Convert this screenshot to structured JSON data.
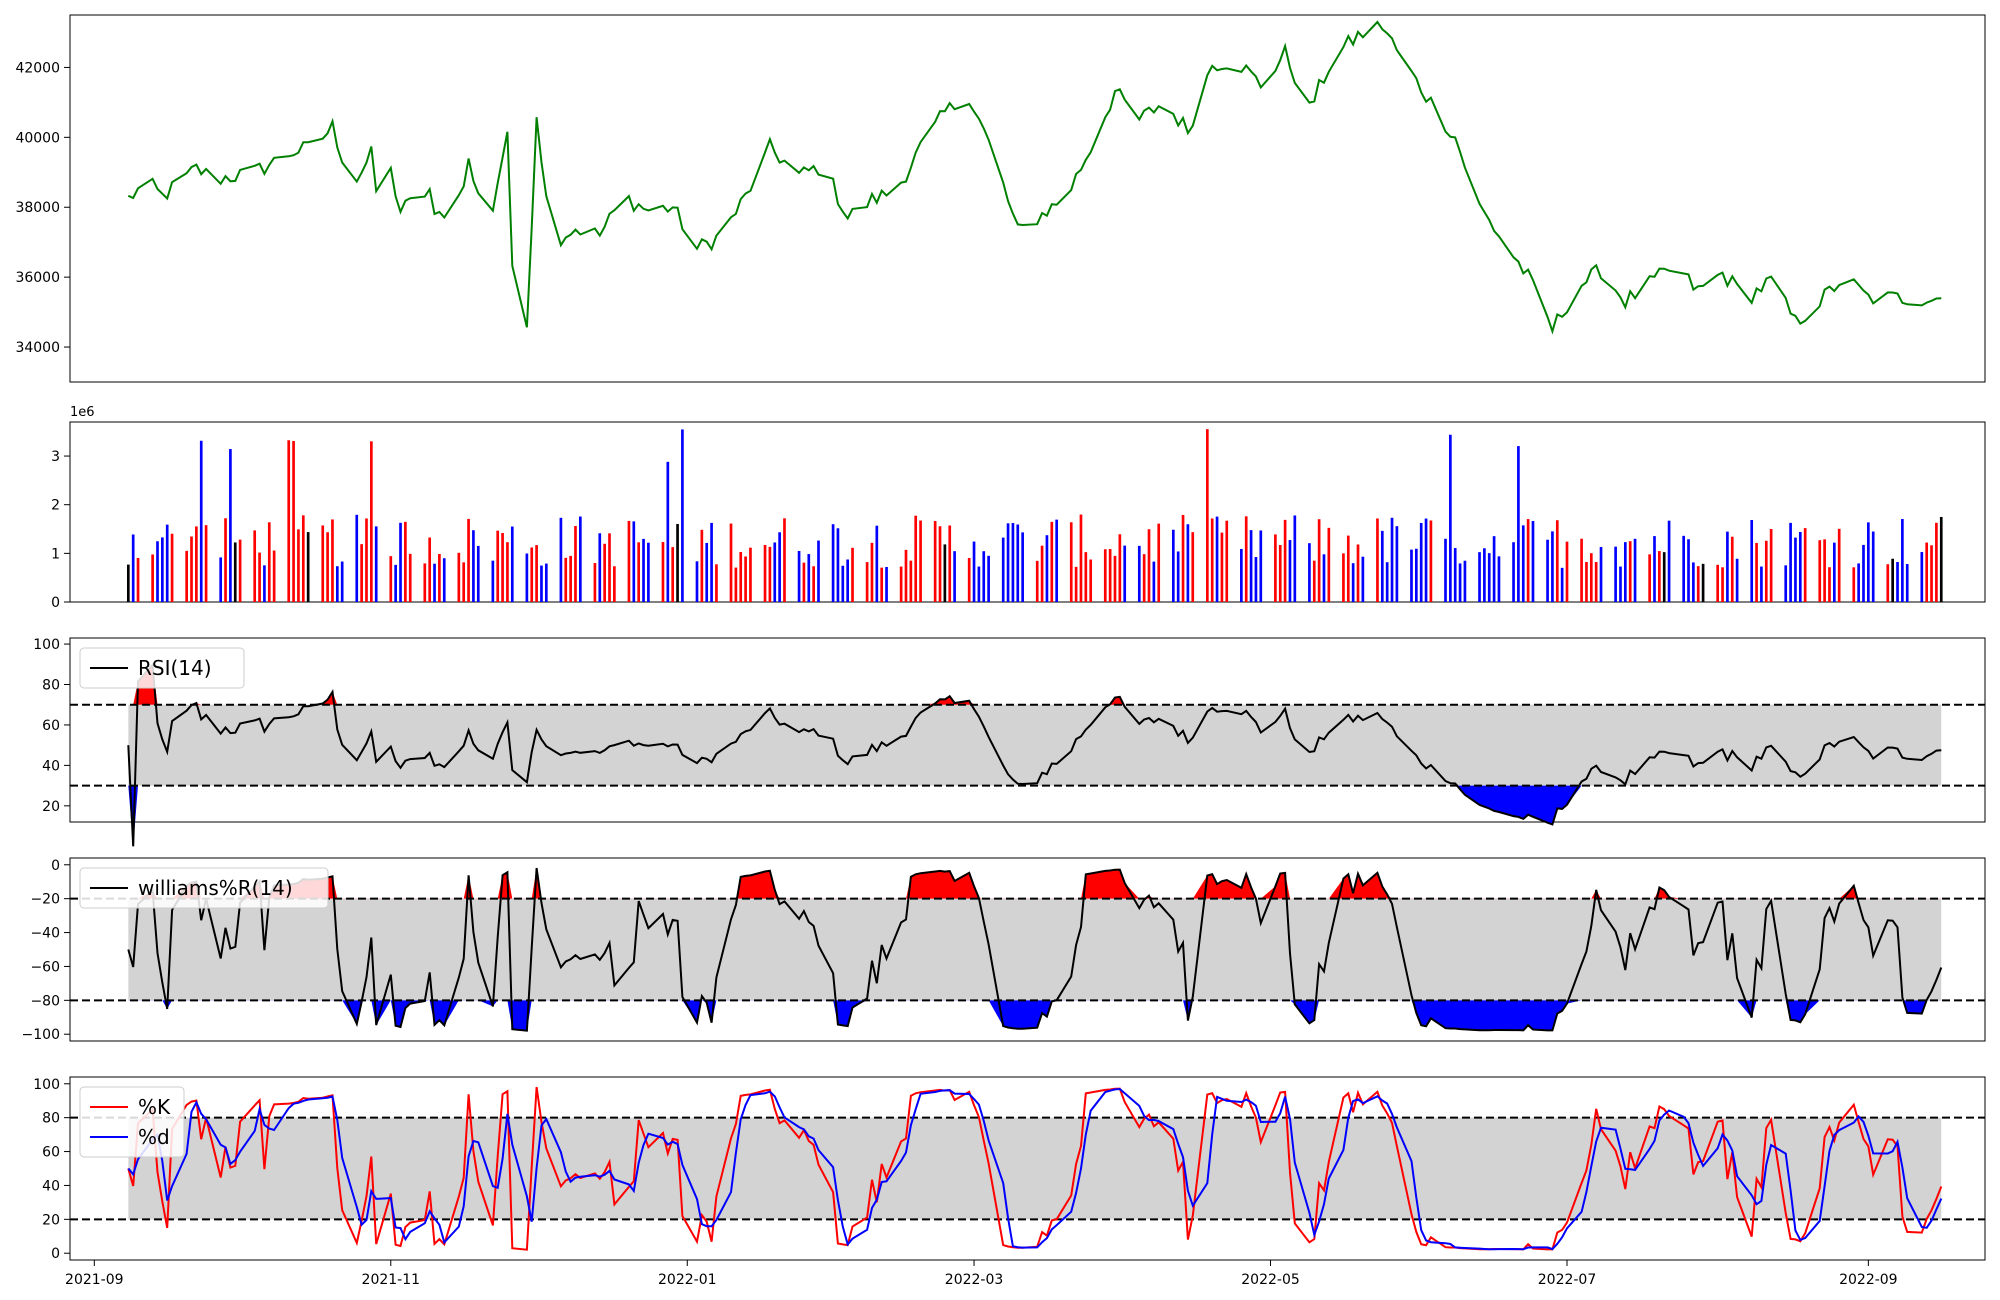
{
  "chart_data": [
    {
      "type": "line",
      "panel": "price",
      "ylim": [
        33000,
        43500
      ],
      "yticks": [
        34000,
        36000,
        38000,
        40000,
        42000
      ],
      "ytick_labels": [
        "34000",
        "36000",
        "38000",
        "40000",
        "42000"
      ],
      "color": "#008000",
      "points": [
        [
          "2021-09-08",
          38250
        ],
        [
          "2021-09-12",
          38700
        ],
        [
          "2021-09-15",
          38300
        ],
        [
          "2021-09-22",
          39100
        ],
        [
          "2021-09-26",
          38800
        ],
        [
          "2021-10-04",
          39000
        ],
        [
          "2021-10-12",
          39600
        ],
        [
          "2021-10-16",
          39700
        ],
        [
          "2021-10-20",
          40300
        ],
        [
          "2021-10-28",
          39500
        ],
        [
          "2021-11-01",
          39000
        ],
        [
          "2021-11-09",
          38500
        ],
        [
          "2021-11-17",
          39300
        ],
        [
          "2021-11-25",
          40200
        ],
        [
          "2021-12-01",
          40700
        ],
        [
          "2021-10-24",
          38600
        ],
        [
          "2021-10-28",
          38300
        ],
        [
          "2021-11-03",
          37900
        ],
        [
          "2021-11-09",
          37500
        ],
        [
          "2021-11-15",
          38300
        ],
        [
          "2021-11-21",
          37300
        ],
        [
          "2021-11-25",
          36600
        ],
        [
          "2021-11-29",
          34600
        ],
        [
          "2021-12-04",
          37000
        ],
        [
          "2021-12-09",
          37400
        ],
        [
          "2021-12-14",
          37200
        ],
        [
          "2021-12-19",
          38300
        ],
        [
          "2021-12-24",
          37900
        ],
        [
          "2021-12-29",
          38000
        ],
        [
          "2022-01-03",
          36800
        ],
        [
          "2022-01-08",
          37200
        ],
        [
          "2022-01-13",
          38300
        ],
        [
          "2022-01-18",
          39700
        ],
        [
          "2022-01-24",
          38900
        ],
        [
          "2022-01-29",
          39200
        ],
        [
          "2022-02-03",
          37700
        ],
        [
          "2022-02-08",
          38200
        ],
        [
          "2022-02-13",
          38500
        ],
        [
          "2022-02-18",
          39700
        ],
        [
          "2022-02-23",
          40700
        ],
        [
          "2022-02-28",
          41200
        ],
        [
          "2022-03-05",
          39500
        ],
        [
          "2022-03-10",
          37300
        ],
        [
          "2022-03-15",
          37800
        ],
        [
          "2022-03-20",
          38300
        ],
        [
          "2022-03-25",
          39700
        ],
        [
          "2022-03-30",
          41300
        ],
        [
          "2022-04-04",
          40500
        ],
        [
          "2022-04-09",
          41000
        ],
        [
          "2022-04-14",
          40200
        ],
        [
          "2022-04-19",
          42100
        ],
        [
          "2022-04-24",
          42200
        ],
        [
          "2022-04-29",
          41500
        ],
        [
          "2022-05-04",
          42400
        ],
        [
          "2022-05-09",
          40800
        ],
        [
          "2022-05-14",
          42300
        ],
        [
          "2022-05-19",
          42900
        ],
        [
          "2022-05-24",
          43200
        ],
        [
          "2022-05-29",
          42000
        ],
        [
          "2022-06-03",
          41000
        ],
        [
          "2022-06-08",
          40000
        ],
        [
          "2022-06-13",
          38000
        ],
        [
          "2022-06-18",
          37000
        ],
        [
          "2022-06-23",
          36000
        ],
        [
          "2022-06-28",
          34500
        ],
        [
          "2022-07-03",
          35700
        ],
        [
          "2022-07-08",
          36200
        ],
        [
          "2022-07-13",
          35300
        ],
        [
          "2022-07-18",
          35800
        ],
        [
          "2022-07-23",
          36300
        ],
        [
          "2022-07-28",
          35600
        ],
        [
          "2022-08-02",
          36100
        ],
        [
          "2022-08-07",
          35400
        ],
        [
          "2022-08-12",
          35900
        ],
        [
          "2022-08-17",
          34700
        ],
        [
          "2022-08-22",
          35300
        ],
        [
          "2022-08-27",
          36000
        ],
        [
          "2022-09-01",
          35400
        ]
      ]
    },
    {
      "type": "bar",
      "panel": "volume",
      "ylim": [
        0,
        3700000
      ],
      "yticks": [
        0,
        1000000,
        2000000,
        3000000
      ],
      "ytick_labels": [
        "0",
        "1",
        "2",
        "3"
      ],
      "offset_label": "1e6",
      "colors": {
        "up": "#ff0000",
        "down": "#0000ff",
        "flat": "#000000"
      }
    },
    {
      "type": "line",
      "panel": "rsi",
      "legend": [
        "RSI(14)"
      ],
      "ylim": [
        12,
        103
      ],
      "yticks": [
        20,
        40,
        60,
        80,
        100
      ],
      "ytick_labels": [
        "20",
        "40",
        "60",
        "80",
        "100"
      ],
      "upper": 70,
      "lower": 30,
      "colors": {
        "line": "#000000",
        "band": "#d3d3d3",
        "above": "#ff0000",
        "below": "#0000ff"
      }
    },
    {
      "type": "line",
      "panel": "williams",
      "legend": [
        "williams%R(14)"
      ],
      "ylim": [
        -104,
        4
      ],
      "yticks": [
        -100,
        -80,
        -60,
        -40,
        -20,
        0
      ],
      "ytick_labels": [
        "−100",
        "−80",
        "−60",
        "−40",
        "−20",
        "0"
      ],
      "upper": -20,
      "lower": -80,
      "colors": {
        "line": "#000000",
        "band": "#d3d3d3",
        "above": "#ff0000",
        "below": "#0000ff"
      }
    },
    {
      "type": "line",
      "panel": "stochastic",
      "legend": [
        "%K",
        "%d"
      ],
      "ylim": [
        -4,
        104
      ],
      "yticks": [
        0,
        20,
        40,
        60,
        80,
        100
      ],
      "ytick_labels": [
        "0",
        "20",
        "40",
        "60",
        "80",
        "100"
      ],
      "upper": 80,
      "lower": 20,
      "colors": {
        "k": "#ff0000",
        "d": "#0000ff",
        "band": "#d3d3d3"
      }
    }
  ],
  "x_axis": {
    "start": "2021-08-27",
    "end": "2022-09-25",
    "ticks": [
      "2021-09-01",
      "2021-11-01",
      "2022-01-01",
      "2022-03-01",
      "2022-05-01",
      "2022-07-01",
      "2022-09-01"
    ],
    "tick_labels": [
      "2021-09",
      "2021-11",
      "2022-01",
      "2022-03",
      "2022-05",
      "2022-07",
      "2022-09"
    ]
  },
  "legends": {
    "rsi": "RSI(14)",
    "williams": "williams%R(14)",
    "k": "%K",
    "d": "%d"
  }
}
